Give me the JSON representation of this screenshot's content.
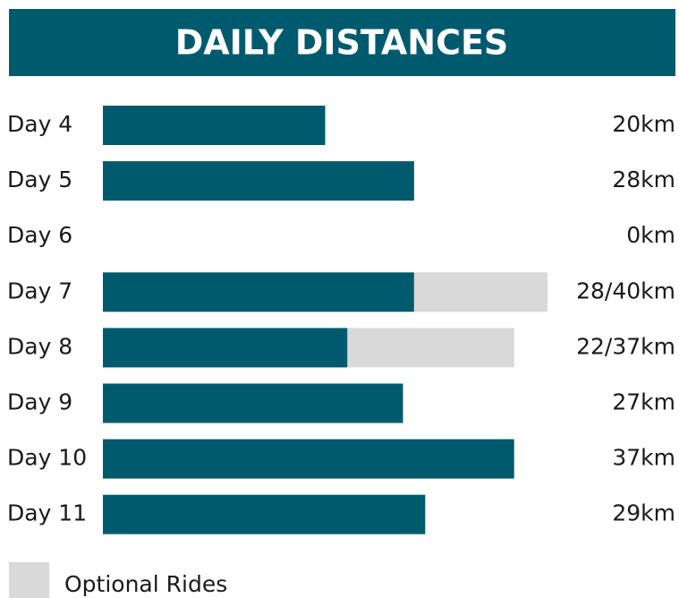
{
  "chart_data": {
    "type": "bar",
    "orientation": "horizontal",
    "title": "DAILY DISTANCES",
    "categories": [
      "Day 4",
      "Day 5",
      "Day 6",
      "Day 7",
      "Day 8",
      "Day 9",
      "Day 10",
      "Day 11"
    ],
    "series": [
      {
        "color": "#005a6e",
        "values": [
          20,
          28,
          0,
          28,
          22,
          27,
          37,
          29
        ],
        "value_labels": [
          "20km",
          "28km",
          "0km",
          "28/40km",
          "22/37km",
          "27km",
          "37km",
          "29km"
        ]
      },
      {
        "name": "Optional Rides",
        "color": "#d9d9d9",
        "values": [
          null,
          null,
          null,
          12,
          15,
          null,
          null,
          null
        ]
      }
    ],
    "stacked": true,
    "xlim": [
      0,
      40
    ]
  }
}
